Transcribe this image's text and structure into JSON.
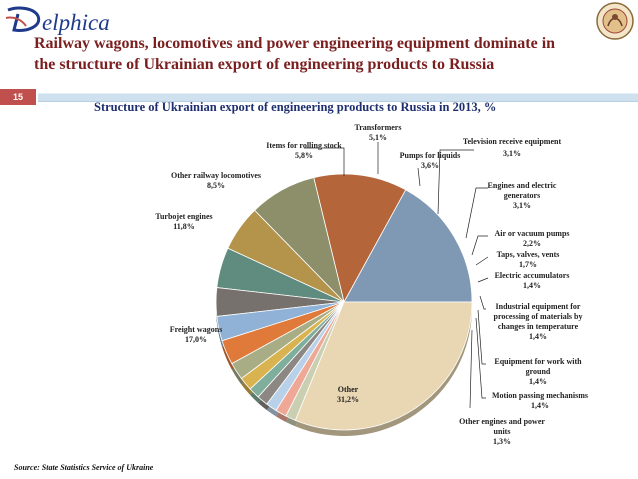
{
  "brand": {
    "name": "elphica"
  },
  "headline": {
    "line1": "Railway wagons, locomotives and power engineering equipment dominate in",
    "line2": "the structure of Ukrainian export of engineering products to Russia"
  },
  "slide_number": "15",
  "source": "Source: State Statistics Service of Ukraine",
  "colors": {
    "headline": "#7a1f1f",
    "title": "#1f2f6e",
    "slide_badge": "#c0504d",
    "bar": "#cfe0ee"
  },
  "chart_data": {
    "type": "pie",
    "title": "Structure of Ukrainian export of engineering products to Russia in 2013,  %",
    "start_angle_deg": 0,
    "direction": "counterclockwise",
    "slices": [
      {
        "label": "Freight wagons",
        "value_text": "17,0%",
        "value": 17.0,
        "color": "#7f98b3"
      },
      {
        "label": "Turbojet engines",
        "value_text": "11,8%",
        "value": 11.8,
        "color": "#b5653a"
      },
      {
        "label": "Other railway locomotives",
        "value_text": "8,5%",
        "value": 8.5,
        "color": "#8c8f6a"
      },
      {
        "label": "Items for rolling stock",
        "value_text": "5,8%",
        "value": 5.8,
        "color": "#b4934b"
      },
      {
        "label": "Transformers",
        "value_text": "5,1%",
        "value": 5.1,
        "color": "#5f8c7e"
      },
      {
        "label": "Pumps for liquids",
        "value_text": "3,6%",
        "value": 3.6,
        "color": "#77716e"
      },
      {
        "label": "Television receive equipment",
        "value_text": "3,1%",
        "value": 3.1,
        "color": "#8fb2d6"
      },
      {
        "label": "Engines and electric generators",
        "value_text": "3,1%",
        "value": 3.1,
        "color": "#e07a3a"
      },
      {
        "label": "Air or vacuum pumps",
        "value_text": "2,2%",
        "value": 2.2,
        "color": "#a9ad86"
      },
      {
        "label": "Taps, valves, vents",
        "value_text": "1,7%",
        "value": 1.7,
        "color": "#d8b350"
      },
      {
        "label": "Electric accumulators",
        "value_text": "1,4%",
        "value": 1.4,
        "color": "#7fae9c"
      },
      {
        "label": "Industrial equipment for processing of materials by changes in temperature",
        "value_text": "1,4%",
        "value": 1.4,
        "color": "#8d8784"
      },
      {
        "label": "Equipment for work with ground",
        "value_text": "1,4%",
        "value": 1.4,
        "color": "#b9d1e8"
      },
      {
        "label": "Motion passing mechanisms",
        "value_text": "1,4%",
        "value": 1.4,
        "color": "#f0a896"
      },
      {
        "label": "Other engines and power units",
        "value_text": "1,3%",
        "value": 1.3,
        "color": "#cbcfb2"
      },
      {
        "label": "Other",
        "value_text": "31,2%",
        "value": 31.2,
        "color": "#e8d7b2"
      }
    ]
  }
}
